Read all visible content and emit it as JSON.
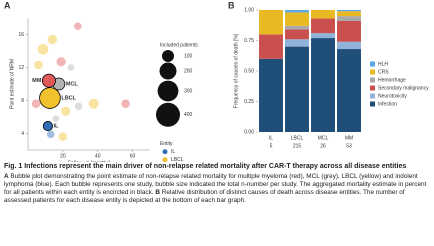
{
  "chart_data": [
    {
      "type": "scatter",
      "panel": "A",
      "x_label": "Follow-up [months]",
      "y_label": "Point estimate of NRM",
      "xlim": [
        0,
        70
      ],
      "xticks": [
        20,
        40,
        60
      ],
      "ylim": [
        2,
        18
      ],
      "yticks": [
        4,
        8,
        12,
        16
      ],
      "size_legend_title": "Included patients",
      "size_legend": [
        100,
        200,
        300,
        400
      ],
      "legend_title": "Entity",
      "series": [
        {
          "name": "IL",
          "color": "#2e6fb5",
          "x": [
            13
          ],
          "values": [
            3.9
          ],
          "sizes": [
            40
          ],
          "aggregate": {
            "x": 11.4,
            "y": 4.9,
            "size": 60
          }
        },
        {
          "name": "LBCL",
          "color": "#f2c12e",
          "x": [
            14,
            8.6,
            6,
            37.7,
            21.7,
            20
          ],
          "values": [
            15.4,
            14.2,
            12.3,
            7.6,
            6.7,
            3.6
          ],
          "sizes": [
            60,
            80,
            50,
            70,
            60,
            50
          ],
          "aggregate": {
            "x": 12.6,
            "y": 8.3,
            "size": 300
          }
        },
        {
          "name": "MCL",
          "color": "#b3b3b3",
          "x": [
            24.6,
            29,
            16
          ],
          "values": [
            12,
            7.3,
            5.8
          ],
          "sizes": [
            30,
            40,
            30
          ],
          "aggregate": {
            "x": 17.7,
            "y": 10,
            "size": 100
          }
        },
        {
          "name": "MM",
          "color": "#e05a5a",
          "x": [
            28.6,
            19,
            4.6,
            56
          ],
          "values": [
            17,
            12.7,
            7.6,
            7.6
          ],
          "sizes": [
            40,
            60,
            50,
            50
          ],
          "aggregate": {
            "x": 12,
            "y": 10.4,
            "size": 120
          }
        }
      ]
    },
    {
      "type": "bar",
      "panel": "B",
      "y_label": "Frequency of causes of death [%]",
      "categories": [
        "IL",
        "LBCL",
        "MCL",
        "MM"
      ],
      "counts": [
        5,
        215,
        26,
        53
      ],
      "ylim": [
        0,
        1
      ],
      "yticks": [
        {
          "value": 0,
          "label": "0.00"
        },
        {
          "value": 0.25,
          "label": "0.25"
        },
        {
          "value": 0.5,
          "label": "0.50"
        },
        {
          "value": 0.75,
          "label": "0.75"
        },
        {
          "value": 1,
          "label": "1.00"
        }
      ],
      "series": [
        {
          "name": "HLH",
          "color": "#5aa9e6",
          "values": [
            0,
            0.02,
            0,
            0.01
          ]
        },
        {
          "name": "CRS",
          "color": "#e8b923",
          "values": [
            0.2,
            0.11,
            0.07,
            0.04
          ]
        },
        {
          "name": "Hemorrhage",
          "color": "#a9a9a9",
          "values": [
            0,
            0.03,
            0,
            0.04
          ]
        },
        {
          "name": "Secondary malignancy",
          "color": "#c9504f",
          "values": [
            0.2,
            0.08,
            0.12,
            0.17
          ]
        },
        {
          "name": "Neurotoxicity",
          "color": "#8fb3d9",
          "values": [
            0,
            0.06,
            0.04,
            0.06
          ]
        },
        {
          "name": "Infection",
          "color": "#1f4e79",
          "values": [
            0.6,
            0.7,
            0.77,
            0.68
          ]
        }
      ]
    }
  ],
  "caption": {
    "title": "Fig. 1 Infections represent the main driver of non-relapse related mortality after CAR-T therapy across all disease entities",
    "panel_a_label": "A",
    "panel_a_text": "Bubble plot demonstrating the point estimate of non-relapse related mortality for multiple myeloma (red), MCL (grey), LBCL (yellow) and indolent lymphoma (blue). Each bubble represents one study, bubble size indicated the total n-number per study. The aggregated mortality estimate in percent for all patients within each entity is encircled in black.",
    "panel_b_label": "B",
    "panel_b_text": "Relative distribution of distinct causes of death across disease entities. The number of assessed patients for each disease entity is depicted at the bottom of each bar graph."
  }
}
